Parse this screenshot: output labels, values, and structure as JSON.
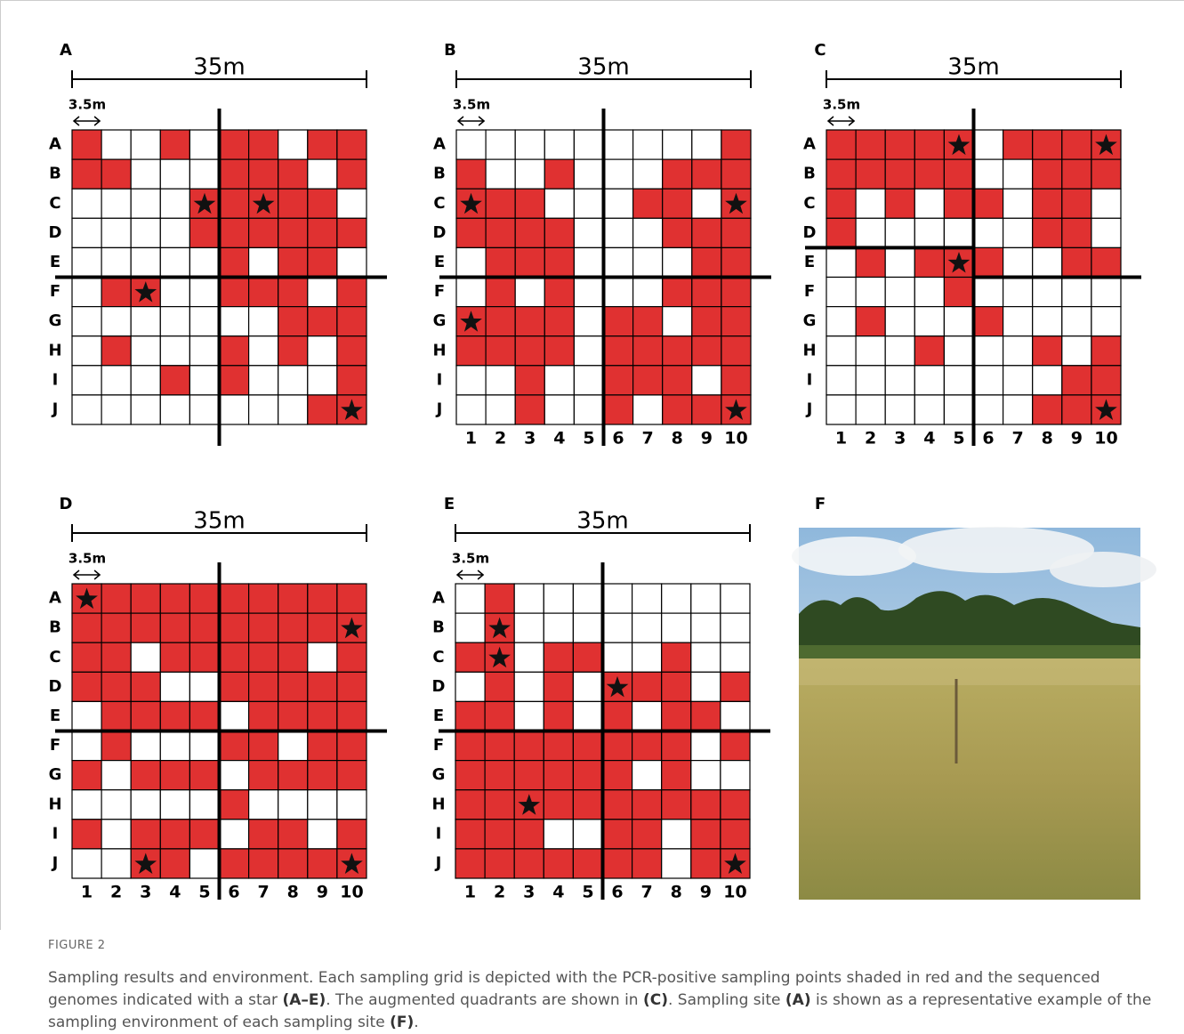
{
  "figure": {
    "rows": [
      "A",
      "B",
      "C",
      "D",
      "E",
      "F",
      "G",
      "H",
      "I",
      "J"
    ],
    "columns": [
      1,
      2,
      3,
      4,
      5,
      6,
      7,
      8,
      9,
      10
    ],
    "span": "35m",
    "cell_size": "3.5m",
    "positive_color": "#e03131",
    "panels": [
      {
        "label": "A",
        "show_columns": false,
        "cells": [
          [
            1,
            0,
            0,
            1,
            0,
            1,
            1,
            0,
            1,
            1
          ],
          [
            1,
            1,
            0,
            0,
            0,
            1,
            1,
            1,
            0,
            1
          ],
          [
            0,
            0,
            0,
            0,
            1,
            1,
            1,
            1,
            1,
            0
          ],
          [
            0,
            0,
            0,
            0,
            1,
            1,
            1,
            1,
            1,
            1
          ],
          [
            0,
            0,
            0,
            0,
            0,
            1,
            0,
            1,
            1,
            0
          ],
          [
            0,
            1,
            1,
            0,
            0,
            1,
            1,
            1,
            0,
            1
          ],
          [
            0,
            0,
            0,
            0,
            0,
            0,
            0,
            1,
            1,
            1
          ],
          [
            0,
            1,
            0,
            0,
            0,
            1,
            0,
            1,
            0,
            1
          ],
          [
            0,
            0,
            0,
            1,
            0,
            1,
            0,
            0,
            0,
            1
          ],
          [
            0,
            0,
            0,
            0,
            0,
            0,
            0,
            0,
            1,
            1
          ]
        ],
        "stars": [
          [
            "C",
            5
          ],
          [
            "C",
            7
          ],
          [
            "F",
            3
          ],
          [
            "J",
            10
          ]
        ]
      },
      {
        "label": "B",
        "show_columns": true,
        "cells": [
          [
            0,
            0,
            0,
            0,
            0,
            0,
            0,
            0,
            0,
            1
          ],
          [
            1,
            0,
            0,
            1,
            0,
            0,
            0,
            1,
            1,
            1
          ],
          [
            1,
            1,
            1,
            0,
            0,
            0,
            1,
            1,
            0,
            1
          ],
          [
            1,
            1,
            1,
            1,
            0,
            0,
            0,
            1,
            1,
            1
          ],
          [
            0,
            1,
            1,
            1,
            0,
            0,
            0,
            0,
            1,
            1
          ],
          [
            0,
            1,
            0,
            1,
            0,
            0,
            0,
            1,
            1,
            1
          ],
          [
            1,
            1,
            1,
            1,
            0,
            1,
            1,
            0,
            1,
            1
          ],
          [
            1,
            1,
            1,
            1,
            0,
            1,
            1,
            1,
            1,
            1
          ],
          [
            0,
            0,
            1,
            0,
            0,
            1,
            1,
            1,
            0,
            1
          ],
          [
            0,
            0,
            1,
            0,
            0,
            1,
            0,
            1,
            1,
            1
          ]
        ],
        "stars": [
          [
            "C",
            1
          ],
          [
            "C",
            10
          ],
          [
            "G",
            1
          ],
          [
            "J",
            10
          ]
        ]
      },
      {
        "label": "C",
        "show_columns": true,
        "cells": [
          [
            1,
            1,
            1,
            1,
            1,
            0,
            1,
            1,
            1,
            1
          ],
          [
            1,
            1,
            1,
            1,
            1,
            0,
            0,
            1,
            1,
            1
          ],
          [
            1,
            0,
            1,
            0,
            1,
            1,
            0,
            1,
            1,
            0
          ],
          [
            1,
            0,
            0,
            0,
            0,
            0,
            0,
            1,
            1,
            0
          ],
          [
            0,
            1,
            0,
            1,
            1,
            1,
            0,
            0,
            1,
            1
          ],
          [
            0,
            0,
            0,
            0,
            1,
            0,
            0,
            0,
            0,
            0
          ],
          [
            0,
            1,
            0,
            0,
            0,
            1,
            0,
            0,
            0,
            0
          ],
          [
            0,
            0,
            0,
            1,
            0,
            0,
            0,
            1,
            0,
            1
          ],
          [
            0,
            0,
            0,
            0,
            0,
            0,
            0,
            0,
            1,
            1
          ],
          [
            0,
            0,
            0,
            0,
            0,
            0,
            0,
            1,
            1,
            1
          ]
        ],
        "stars": [
          [
            "A",
            5
          ],
          [
            "A",
            10
          ],
          [
            "E",
            5
          ],
          [
            "J",
            10
          ]
        ]
      },
      {
        "label": "D",
        "show_columns": true,
        "cells": [
          [
            1,
            1,
            1,
            1,
            1,
            1,
            1,
            1,
            1,
            1
          ],
          [
            1,
            1,
            1,
            1,
            1,
            1,
            1,
            1,
            1,
            1
          ],
          [
            1,
            1,
            0,
            1,
            1,
            1,
            1,
            1,
            0,
            1
          ],
          [
            1,
            1,
            1,
            0,
            0,
            1,
            1,
            1,
            1,
            1
          ],
          [
            0,
            1,
            1,
            1,
            1,
            0,
            1,
            1,
            1,
            1
          ],
          [
            0,
            1,
            0,
            0,
            0,
            1,
            1,
            0,
            1,
            1
          ],
          [
            1,
            0,
            1,
            1,
            1,
            0,
            1,
            1,
            1,
            1
          ],
          [
            0,
            0,
            0,
            0,
            0,
            1,
            0,
            0,
            0,
            0
          ],
          [
            1,
            0,
            1,
            1,
            1,
            0,
            1,
            1,
            0,
            1
          ],
          [
            0,
            0,
            1,
            1,
            0,
            1,
            1,
            1,
            1,
            1
          ]
        ],
        "stars": [
          [
            "A",
            1
          ],
          [
            "B",
            10
          ],
          [
            "J",
            3
          ],
          [
            "J",
            10
          ]
        ]
      },
      {
        "label": "E",
        "show_columns": true,
        "cells": [
          [
            0,
            1,
            0,
            0,
            0,
            0,
            0,
            0,
            0,
            0
          ],
          [
            0,
            1,
            0,
            0,
            0,
            0,
            0,
            0,
            0,
            0
          ],
          [
            1,
            1,
            0,
            1,
            1,
            0,
            0,
            1,
            0,
            0
          ],
          [
            0,
            1,
            0,
            1,
            0,
            1,
            1,
            1,
            0,
            1
          ],
          [
            1,
            1,
            0,
            1,
            0,
            1,
            0,
            1,
            1,
            0
          ],
          [
            1,
            1,
            1,
            1,
            1,
            1,
            1,
            1,
            0,
            1
          ],
          [
            1,
            1,
            1,
            1,
            1,
            1,
            0,
            1,
            0,
            0
          ],
          [
            1,
            1,
            1,
            1,
            1,
            1,
            1,
            1,
            1,
            1
          ],
          [
            1,
            1,
            1,
            0,
            0,
            1,
            1,
            0,
            1,
            1
          ],
          [
            1,
            1,
            1,
            1,
            1,
            1,
            1,
            0,
            1,
            1
          ]
        ],
        "stars": [
          [
            "B",
            2
          ],
          [
            "C",
            2
          ],
          [
            "D",
            6
          ],
          [
            "H",
            3
          ],
          [
            "J",
            10
          ]
        ]
      }
    ],
    "photo_label": "F"
  },
  "caption": {
    "label": "FIGURE 2",
    "parts": [
      {
        "text": "Sampling results and environment. Each sampling grid is depicted with the PCR-positive sampling points shaded in red and the sequenced genomes indicated with a star ",
        "bold": false
      },
      {
        "text": "(A–E)",
        "bold": true
      },
      {
        "text": ". The augmented quadrants are shown in ",
        "bold": false
      },
      {
        "text": "(C)",
        "bold": true
      },
      {
        "text": ". Sampling site ",
        "bold": false
      },
      {
        "text": "(A)",
        "bold": true
      },
      {
        "text": " is shown as a representative example of the sampling environment of each sampling site ",
        "bold": false
      },
      {
        "text": "(F)",
        "bold": true
      },
      {
        "text": ".",
        "bold": false
      }
    ]
  }
}
